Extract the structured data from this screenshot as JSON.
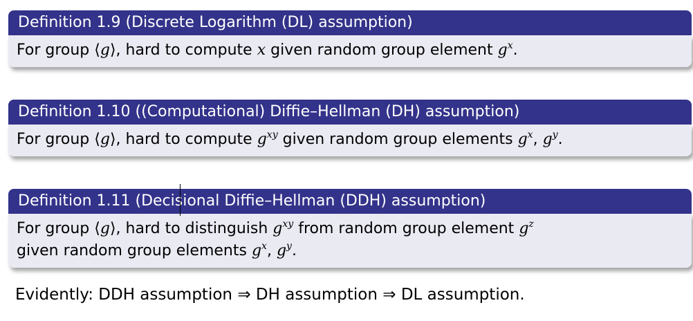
{
  "defs": [
    {
      "title": "Definition 1.9 (Discrete Logarithm (DL) assumption)",
      "t1": "For group ",
      "g": "g",
      "t2": ", hard to compute ",
      "x": "x",
      "t3": " given random group element ",
      "gx_base": "g",
      "gx_sup": "x",
      "end": "."
    },
    {
      "title": "Definition 1.10 ((Computational) Diffie–Hellman (DH) assumption)",
      "t1": "For group ",
      "g": "g",
      "t2": ", hard to compute ",
      "gxy_base": "g",
      "gxy_sup": "xy",
      "t3": " given random group elements ",
      "gx_base": "g",
      "gx_sup": "x",
      "comma": ", ",
      "gy_base": "g",
      "gy_sup": "y",
      "end": "."
    },
    {
      "title": "Definition 1.11 (Decisional Diffie–Hellman (DDH) assumption)",
      "t1": "For group ",
      "g": "g",
      "t2": ", hard to distinguish ",
      "gxy_base": "g",
      "gxy_sup": "xy",
      "t3": " from random group element ",
      "gz_base": "g",
      "gz_sup": "z",
      "t4": "given random group elements ",
      "gx_base": "g",
      "gx_sup": "x",
      "comma": ", ",
      "gy_base": "g",
      "gy_sup": "y",
      "end": "."
    }
  ],
  "conclusion": {
    "text1": "Evidently: DDH assumption ",
    "implies1": "⇒",
    "text2": " DH assumption ",
    "implies2": "⇒",
    "text3": " DL assumption."
  }
}
